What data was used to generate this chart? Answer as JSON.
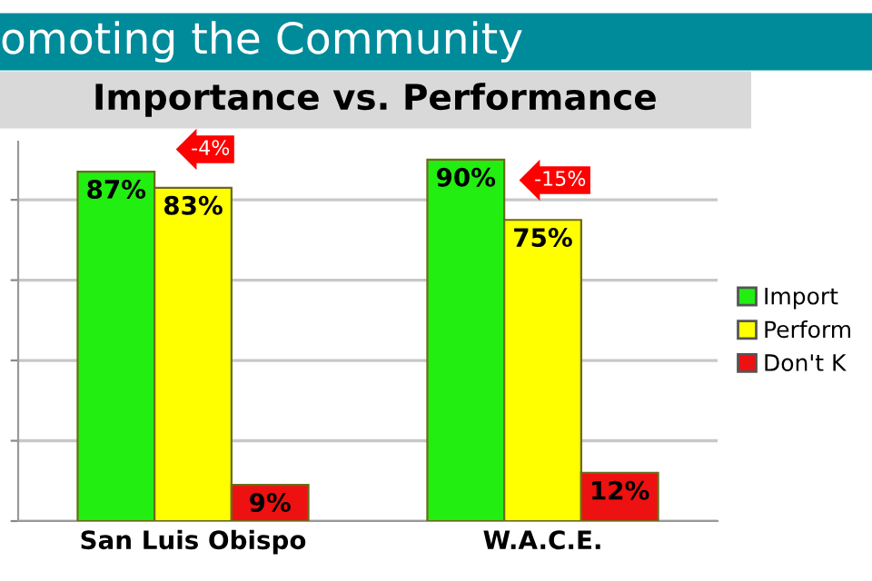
{
  "chart_data": {
    "type": "bar",
    "title": "omoting the Community",
    "subtitle": "Importance vs. Performance",
    "categories": [
      "San Luis Obispo",
      "W.A.C.E."
    ],
    "series": [
      {
        "name": "Import",
        "color": "#22ee11",
        "values": [
          87,
          90
        ],
        "value_labels": [
          "87%",
          "90%"
        ]
      },
      {
        "name": "Perform",
        "color": "#ffff00",
        "values": [
          83,
          75
        ],
        "value_labels": [
          "83%",
          "75%"
        ]
      },
      {
        "name": "Don't K",
        "color": "#ee1111",
        "values": [
          9,
          12
        ],
        "value_labels": [
          "9%",
          "12%"
        ]
      }
    ],
    "tick_labels": "x",
    "grid": "y",
    "legend": "right",
    "annotations": [
      "-4%",
      "-15%"
    ]
  }
}
